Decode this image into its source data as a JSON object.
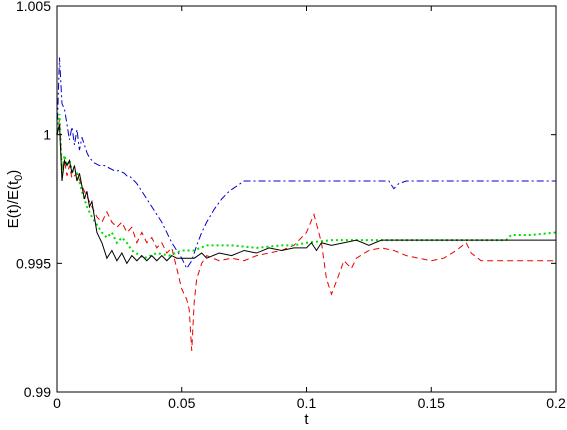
{
  "chart_data": {
    "type": "line",
    "title": "",
    "xlabel": "t",
    "ylabel": "E(t)/E(t0)",
    "ylabel_parts": {
      "main": "E(t)/E(t",
      "sub": "0",
      "close": ")"
    },
    "xlim": [
      0,
      0.2
    ],
    "ylim": [
      0.99,
      1.005
    ],
    "xticks": [
      0,
      0.05,
      0.1,
      0.15,
      0.2
    ],
    "xtick_labels": [
      "0",
      "0.05",
      "0.1",
      "0.15",
      "0.2"
    ],
    "yticks": [
      0.99,
      0.995,
      1,
      1.005
    ],
    "ytick_labels": [
      "0.99",
      "0.995",
      "1",
      "1.005"
    ],
    "grid": false,
    "series": [
      {
        "line_style": "solid",
        "color": "#000000",
        "points": [
          [
            0,
            1.0
          ],
          [
            0.001,
            1.0004
          ],
          [
            0.002,
            0.9982
          ],
          [
            0.003,
            0.999
          ],
          [
            0.004,
            0.9988
          ],
          [
            0.005,
            0.999
          ],
          [
            0.006,
            0.9985
          ],
          [
            0.007,
            0.9988
          ],
          [
            0.008,
            0.9982
          ],
          [
            0.009,
            0.9985
          ],
          [
            0.01,
            0.998
          ],
          [
            0.011,
            0.9975
          ],
          [
            0.012,
            0.9978
          ],
          [
            0.013,
            0.9972
          ],
          [
            0.014,
            0.9974
          ],
          [
            0.015,
            0.9968
          ],
          [
            0.016,
            0.9962
          ],
          [
            0.018,
            0.9958
          ],
          [
            0.02,
            0.9952
          ],
          [
            0.022,
            0.9955
          ],
          [
            0.024,
            0.9951
          ],
          [
            0.026,
            0.9954
          ],
          [
            0.028,
            0.995
          ],
          [
            0.03,
            0.9953
          ],
          [
            0.032,
            0.9951
          ],
          [
            0.034,
            0.9953
          ],
          [
            0.036,
            0.9951
          ],
          [
            0.038,
            0.9953
          ],
          [
            0.04,
            0.9951
          ],
          [
            0.042,
            0.9953
          ],
          [
            0.044,
            0.9951
          ],
          [
            0.046,
            0.9953
          ],
          [
            0.048,
            0.9952
          ],
          [
            0.05,
            0.9952
          ],
          [
            0.055,
            0.9952
          ],
          [
            0.058,
            0.9954
          ],
          [
            0.06,
            0.9952
          ],
          [
            0.065,
            0.9954
          ],
          [
            0.07,
            0.9953
          ],
          [
            0.075,
            0.9955
          ],
          [
            0.08,
            0.9954
          ],
          [
            0.085,
            0.9956
          ],
          [
            0.09,
            0.9955
          ],
          [
            0.095,
            0.9956
          ],
          [
            0.1,
            0.9956
          ],
          [
            0.102,
            0.9958
          ],
          [
            0.104,
            0.9955
          ],
          [
            0.106,
            0.9958
          ],
          [
            0.11,
            0.9957
          ],
          [
            0.12,
            0.9959
          ],
          [
            0.125,
            0.9957
          ],
          [
            0.13,
            0.9959
          ],
          [
            0.15,
            0.9959
          ],
          [
            0.2,
            0.9959
          ]
        ]
      },
      {
        "line_style": "dotted",
        "color": "#00dd00",
        "points": [
          [
            0,
            1.0
          ],
          [
            0.001,
            1.0008
          ],
          [
            0.002,
            0.9985
          ],
          [
            0.003,
            0.9992
          ],
          [
            0.004,
            0.9988
          ],
          [
            0.005,
            0.999
          ],
          [
            0.006,
            0.9986
          ],
          [
            0.008,
            0.9985
          ],
          [
            0.01,
            0.9978
          ],
          [
            0.012,
            0.9972
          ],
          [
            0.014,
            0.9968
          ],
          [
            0.016,
            0.9965
          ],
          [
            0.018,
            0.9962
          ],
          [
            0.02,
            0.996
          ],
          [
            0.022,
            0.9962
          ],
          [
            0.024,
            0.9958
          ],
          [
            0.026,
            0.996
          ],
          [
            0.028,
            0.9958
          ],
          [
            0.03,
            0.9955
          ],
          [
            0.035,
            0.9952
          ],
          [
            0.04,
            0.9954
          ],
          [
            0.045,
            0.9953
          ],
          [
            0.05,
            0.9955
          ],
          [
            0.055,
            0.9955
          ],
          [
            0.06,
            0.9957
          ],
          [
            0.07,
            0.9957
          ],
          [
            0.08,
            0.9956
          ],
          [
            0.09,
            0.9957
          ],
          [
            0.095,
            0.9957
          ],
          [
            0.1,
            0.9958
          ],
          [
            0.11,
            0.9959
          ],
          [
            0.12,
            0.9959
          ],
          [
            0.15,
            0.9959
          ],
          [
            0.18,
            0.9959
          ],
          [
            0.182,
            0.9961
          ],
          [
            0.19,
            0.9961
          ],
          [
            0.2,
            0.9962
          ]
        ]
      },
      {
        "line_style": "dashdot",
        "color": "#0000cc",
        "points": [
          [
            0,
            1.0
          ],
          [
            0.001,
            1.003
          ],
          [
            0.002,
            1.0012
          ],
          [
            0.003,
            1.001
          ],
          [
            0.004,
            1.0004
          ],
          [
            0.005,
            0.9998
          ],
          [
            0.006,
            1.0003
          ],
          [
            0.007,
            0.9996
          ],
          [
            0.008,
            1.0002
          ],
          [
            0.009,
            0.9994
          ],
          [
            0.01,
            0.9999
          ],
          [
            0.011,
            0.9996
          ],
          [
            0.012,
            0.9993
          ],
          [
            0.013,
            0.9991
          ],
          [
            0.015,
            0.9989
          ],
          [
            0.017,
            0.9988
          ],
          [
            0.019,
            0.9988
          ],
          [
            0.021,
            0.9987
          ],
          [
            0.023,
            0.9986
          ],
          [
            0.025,
            0.9986
          ],
          [
            0.027,
            0.9985
          ],
          [
            0.028,
            0.9984
          ],
          [
            0.029,
            0.9984
          ],
          [
            0.03,
            0.9983
          ],
          [
            0.032,
            0.9981
          ],
          [
            0.034,
            0.9978
          ],
          [
            0.036,
            0.9975
          ],
          [
            0.038,
            0.9972
          ],
          [
            0.04,
            0.9969
          ],
          [
            0.042,
            0.9966
          ],
          [
            0.044,
            0.9962
          ],
          [
            0.046,
            0.9958
          ],
          [
            0.048,
            0.9955
          ],
          [
            0.05,
            0.9952
          ],
          [
            0.052,
            0.9948
          ],
          [
            0.054,
            0.9951
          ],
          [
            0.056,
            0.9957
          ],
          [
            0.058,
            0.9962
          ],
          [
            0.06,
            0.9966
          ],
          [
            0.063,
            0.9971
          ],
          [
            0.066,
            0.9975
          ],
          [
            0.069,
            0.9978
          ],
          [
            0.072,
            0.998
          ],
          [
            0.075,
            0.9982
          ],
          [
            0.1,
            0.9982
          ],
          [
            0.133,
            0.9982
          ],
          [
            0.135,
            0.9979
          ],
          [
            0.137,
            0.9981
          ],
          [
            0.14,
            0.9982
          ],
          [
            0.2,
            0.9982
          ]
        ]
      },
      {
        "line_style": "dashed",
        "color": "#ee0000",
        "points": [
          [
            0,
            1.0
          ],
          [
            0.001,
            1.0006
          ],
          [
            0.002,
            0.9986
          ],
          [
            0.003,
            0.999
          ],
          [
            0.004,
            0.9984
          ],
          [
            0.005,
            0.9988
          ],
          [
            0.006,
            0.9983
          ],
          [
            0.008,
            0.9985
          ],
          [
            0.01,
            0.998
          ],
          [
            0.012,
            0.9976
          ],
          [
            0.014,
            0.9972
          ],
          [
            0.016,
            0.9968
          ],
          [
            0.018,
            0.9966
          ],
          [
            0.02,
            0.997
          ],
          [
            0.022,
            0.9966
          ],
          [
            0.024,
            0.9964
          ],
          [
            0.026,
            0.9966
          ],
          [
            0.028,
            0.9962
          ],
          [
            0.03,
            0.9964
          ],
          [
            0.032,
            0.9958
          ],
          [
            0.034,
            0.9962
          ],
          [
            0.036,
            0.9958
          ],
          [
            0.038,
            0.996
          ],
          [
            0.04,
            0.9956
          ],
          [
            0.042,
            0.9958
          ],
          [
            0.044,
            0.9954
          ],
          [
            0.046,
            0.9956
          ],
          [
            0.048,
            0.9948
          ],
          [
            0.05,
            0.994
          ],
          [
            0.052,
            0.9936
          ],
          [
            0.053,
            0.9932
          ],
          [
            0.054,
            0.9916
          ],
          [
            0.055,
            0.9935
          ],
          [
            0.056,
            0.9944
          ],
          [
            0.058,
            0.995
          ],
          [
            0.06,
            0.9953
          ],
          [
            0.065,
            0.9951
          ],
          [
            0.07,
            0.9952
          ],
          [
            0.075,
            0.9951
          ],
          [
            0.08,
            0.9953
          ],
          [
            0.085,
            0.9954
          ],
          [
            0.09,
            0.9955
          ],
          [
            0.095,
            0.9957
          ],
          [
            0.1,
            0.9962
          ],
          [
            0.103,
            0.9969
          ],
          [
            0.106,
            0.9958
          ],
          [
            0.108,
            0.9944
          ],
          [
            0.11,
            0.9938
          ],
          [
            0.112,
            0.9943
          ],
          [
            0.115,
            0.9951
          ],
          [
            0.118,
            0.9948
          ],
          [
            0.12,
            0.9952
          ],
          [
            0.125,
            0.9955
          ],
          [
            0.13,
            0.9956
          ],
          [
            0.135,
            0.9955
          ],
          [
            0.14,
            0.9953
          ],
          [
            0.145,
            0.9952
          ],
          [
            0.15,
            0.9951
          ],
          [
            0.155,
            0.9952
          ],
          [
            0.16,
            0.9955
          ],
          [
            0.164,
            0.9958
          ],
          [
            0.166,
            0.9954
          ],
          [
            0.17,
            0.9951
          ],
          [
            0.175,
            0.9951
          ],
          [
            0.18,
            0.9951
          ],
          [
            0.19,
            0.9951
          ],
          [
            0.2,
            0.9951
          ]
        ]
      }
    ]
  }
}
